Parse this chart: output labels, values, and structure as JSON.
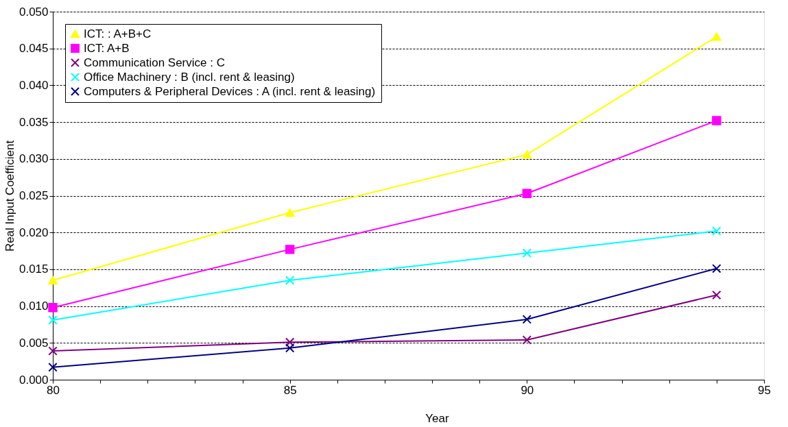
{
  "chart_data": {
    "type": "line",
    "xlabel": "Year",
    "ylabel": "Real Input Coefficient",
    "x": [
      80,
      85,
      90,
      94
    ],
    "xlim": [
      80,
      95
    ],
    "xticks": [
      80,
      {
        "value": 81,
        "label": null
      },
      {
        "value": 82,
        "label": null
      },
      {
        "value": 83,
        "label": null
      },
      {
        "value": 84,
        "label": null
      },
      85,
      {
        "value": 86,
        "label": null
      },
      {
        "value": 87,
        "label": null
      },
      {
        "value": 88,
        "label": null
      },
      {
        "value": 89,
        "label": null
      },
      90,
      {
        "value": 91,
        "label": null
      },
      {
        "value": 92,
        "label": null
      },
      {
        "value": 93,
        "label": null
      },
      {
        "value": 94,
        "label": null
      },
      95
    ],
    "ylim": [
      0,
      0.05
    ],
    "yticks": [
      {
        "value": 0,
        "label": "0.000"
      },
      {
        "value": 0.005,
        "label": "0.005"
      },
      {
        "value": 0.01,
        "label": "0.010"
      },
      {
        "value": 0.015,
        "label": "0.015"
      },
      {
        "value": 0.02,
        "label": "0.020"
      },
      {
        "value": 0.025,
        "label": "0.025"
      },
      {
        "value": 0.03,
        "label": "0.030"
      },
      {
        "value": 0.035,
        "label": "0.035"
      },
      {
        "value": 0.04,
        "label": "0.040"
      },
      {
        "value": 0.045,
        "label": "0.045"
      },
      {
        "value": 0.05,
        "label": "0.050"
      }
    ],
    "grid": "y",
    "legend": "top left",
    "series": [
      {
        "name": "ICT:  : A+B+C",
        "color": "#ffff00",
        "marker": "triangle",
        "values": [
          0.0135,
          0.0227,
          0.0306,
          0.0466
        ]
      },
      {
        "name": "ICT:  A+B",
        "color": "#ff00ff",
        "marker": "square",
        "values": [
          0.0098,
          0.0177,
          0.0253,
          0.0352
        ]
      },
      {
        "name": "Communication Service : C",
        "color": "#800080",
        "marker": "cross",
        "values": [
          0.0039,
          0.0051,
          0.0054,
          0.0115
        ]
      },
      {
        "name": "Office Machinery : B (incl. rent & leasing)",
        "color": "#00ffff",
        "marker": "cross",
        "values": [
          0.0081,
          0.0135,
          0.0172,
          0.0202
        ]
      },
      {
        "name": "Computers & Peripheral Devices : A (incl. rent & leasing)",
        "color": "#000080",
        "marker": "cross",
        "values": [
          0.0017,
          0.0043,
          0.0082,
          0.0151
        ]
      }
    ]
  }
}
